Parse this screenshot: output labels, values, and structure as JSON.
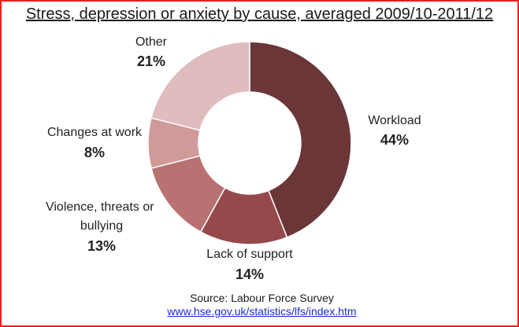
{
  "chart_data": {
    "type": "pie",
    "title": "Stress, depression or anxiety by cause, averaged 2009/10-2011/12",
    "donut": true,
    "slices": [
      {
        "name": "Workload",
        "label": "Workload",
        "value": 44,
        "value_label": "44%",
        "color": "#6b3637"
      },
      {
        "name": "Lack of support",
        "label": "Lack of support",
        "value": 14,
        "value_label": "14%",
        "color": "#96494b"
      },
      {
        "name": "Violence, threats or bullying",
        "label": "Violence, threats or bullying",
        "value": 13,
        "value_label": "13%",
        "color": "#b77271"
      },
      {
        "name": "Changes at work",
        "label": "Changes at work",
        "value": 8,
        "value_label": "8%",
        "color": "#cf9a99"
      },
      {
        "name": "Other",
        "label": "Other",
        "value": 21,
        "value_label": "21%",
        "color": "#dfbcbd"
      }
    ],
    "source_text": "Source: Labour Force Survey",
    "source_link": "www.hse.gov.uk/statistics/lfs/index.htm"
  }
}
